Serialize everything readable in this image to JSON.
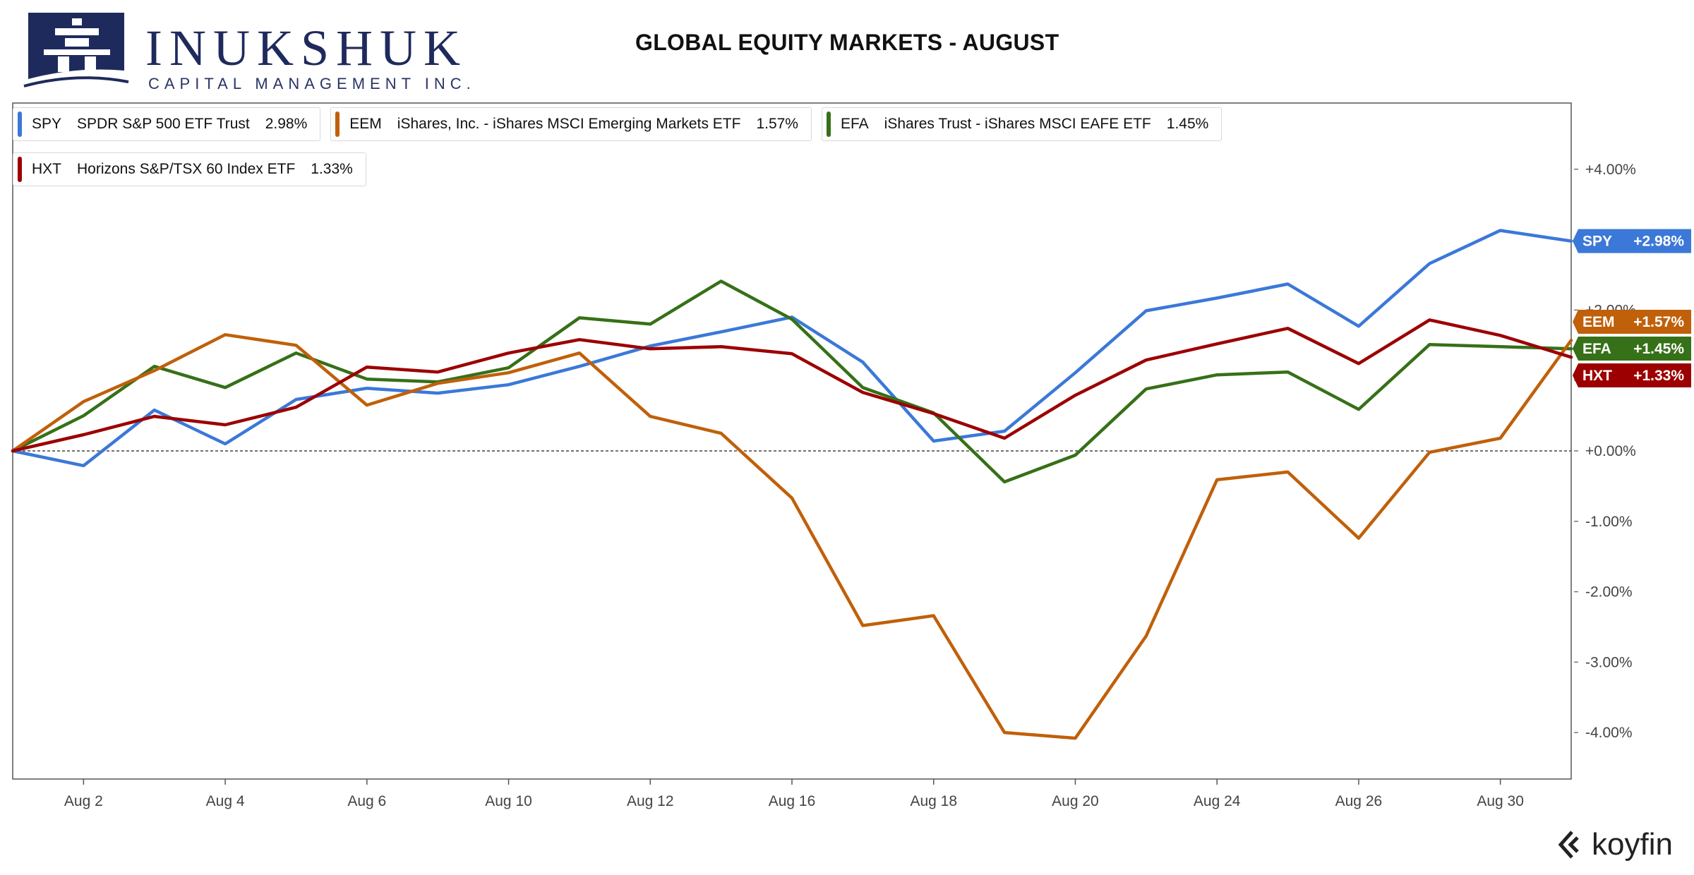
{
  "brand": {
    "name": "INUKSHUK",
    "tagline": "CAPITAL MANAGEMENT INC."
  },
  "footer": {
    "brand": "koyfin"
  },
  "colors": {
    "SPY": "#3b78d8",
    "EEM": "#c0600a",
    "EFA": "#367018",
    "HXT": "#9c0000"
  },
  "chart_data": {
    "type": "line",
    "title": "GLOBAL EQUITY MARKETS - AUGUST",
    "x": [
      "Aug 1",
      "Aug 2",
      "Aug 3",
      "Aug 4",
      "Aug 5",
      "Aug 6",
      "Aug 7",
      "Aug 10",
      "Aug 11",
      "Aug 12",
      "Aug 13",
      "Aug 16",
      "Aug 17",
      "Aug 18",
      "Aug 19",
      "Aug 20",
      "Aug 23",
      "Aug 24",
      "Aug 25",
      "Aug 26",
      "Aug 27",
      "Aug 30",
      "Aug 31"
    ],
    "x_tick_labels": [
      "Aug 2",
      "Aug 4",
      "Aug 6",
      "Aug 10",
      "Aug 12",
      "Aug 16",
      "Aug 18",
      "Aug 20",
      "Aug 24",
      "Aug 26",
      "Aug 30"
    ],
    "x_tick_indices": [
      1,
      3,
      5,
      7,
      9,
      11,
      13,
      15,
      17,
      19,
      21
    ],
    "y_ticks": [
      4,
      3,
      2,
      1,
      0,
      -1,
      -2,
      -3,
      -4
    ],
    "y_tick_labels": [
      "+4.00%",
      "",
      "+2.00%",
      "",
      "+0.00%",
      "-1.00%",
      "-2.00%",
      "-3.00%",
      "-4.00%"
    ],
    "ylim": [
      -4.66,
      4.94
    ],
    "grid": false,
    "zero_line": true,
    "legend_position": "top-left",
    "series": [
      {
        "ticker": "SPY",
        "name": "SPDR S&P 500 ETF Trust",
        "legend_value": "2.98%",
        "end_label": "+2.98%",
        "values": [
          0.0,
          -0.21,
          0.58,
          0.1,
          0.73,
          0.89,
          0.82,
          0.94,
          1.2,
          1.49,
          1.69,
          1.9,
          1.26,
          0.14,
          0.28,
          1.11,
          1.99,
          2.17,
          2.37,
          1.77,
          2.66,
          3.13,
          2.98
        ]
      },
      {
        "ticker": "EEM",
        "name": "iShares, Inc. - iShares MSCI Emerging Markets ETF",
        "legend_value": "1.57%",
        "end_label": "+1.57%",
        "values": [
          0.0,
          0.7,
          1.14,
          1.65,
          1.5,
          0.65,
          0.96,
          1.11,
          1.39,
          0.49,
          0.25,
          -0.67,
          -2.48,
          -2.34,
          -4.0,
          -4.08,
          -2.63,
          -0.41,
          -0.3,
          -1.24,
          -0.02,
          0.18,
          1.57
        ]
      },
      {
        "ticker": "EFA",
        "name": "iShares Trust - iShares MSCI EAFE ETF",
        "legend_value": "1.45%",
        "end_label": "+1.45%",
        "values": [
          0.0,
          0.5,
          1.2,
          0.9,
          1.39,
          1.02,
          0.98,
          1.18,
          1.89,
          1.8,
          2.41,
          1.87,
          0.9,
          0.54,
          -0.44,
          -0.06,
          0.88,
          1.08,
          1.12,
          0.59,
          1.51,
          1.48,
          1.45
        ]
      },
      {
        "ticker": "HXT",
        "name": "Horizons S&P/TSX 60 Index ETF",
        "legend_value": "1.33%",
        "end_label": "+1.33%",
        "values": [
          0.0,
          0.23,
          0.49,
          0.37,
          0.62,
          1.19,
          1.12,
          1.39,
          1.58,
          1.45,
          1.48,
          1.38,
          0.83,
          0.53,
          0.18,
          0.79,
          1.29,
          1.52,
          1.74,
          1.24,
          1.86,
          1.64,
          1.33
        ]
      }
    ]
  }
}
